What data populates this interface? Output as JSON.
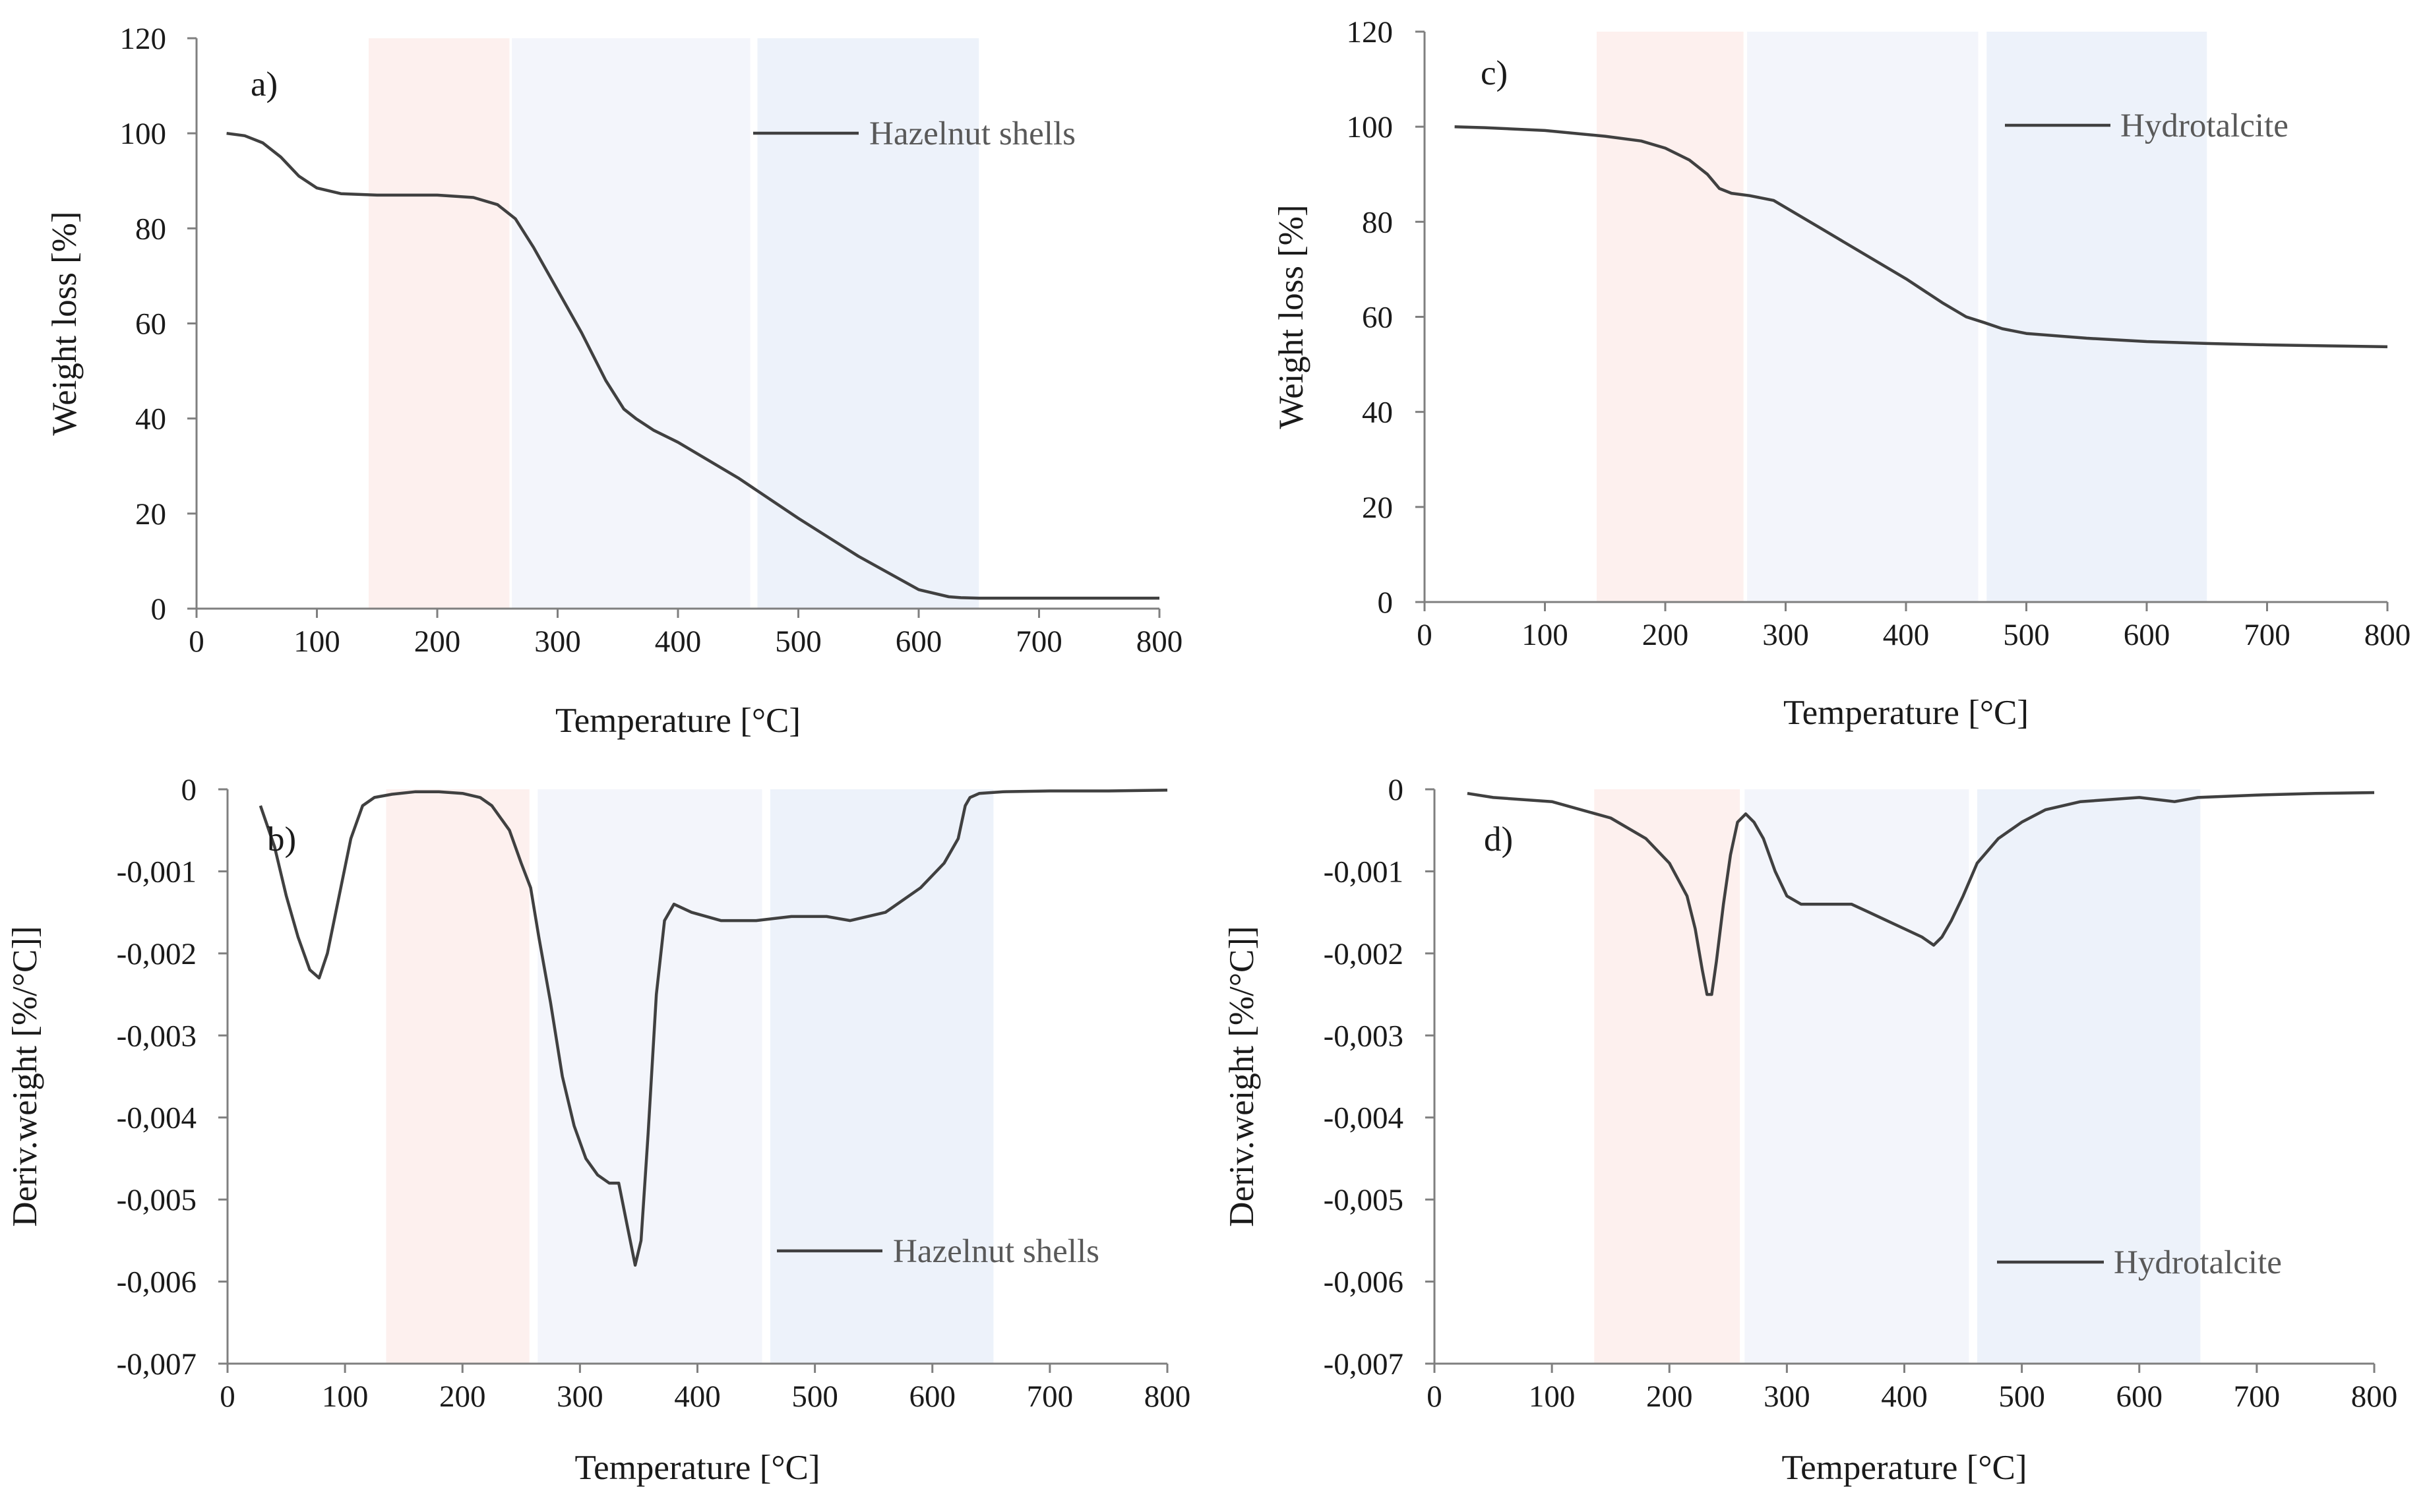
{
  "chart_data": [
    {
      "panel": "a)",
      "type": "line",
      "xlabel": "Temperature [°C]",
      "ylabel": "Weight loss [%]",
      "xlim": [
        0,
        800
      ],
      "ylim": [
        0,
        120
      ],
      "xticks": [
        "0",
        "100",
        "200",
        "300",
        "400",
        "500",
        "600",
        "700",
        "800"
      ],
      "yticks": [
        "0",
        "20",
        "40",
        "60",
        "80",
        "100",
        "120"
      ],
      "legend_position": "top-right",
      "bands": [
        {
          "x": [
            143,
            260
          ],
          "color": "#fdf0ee"
        },
        {
          "x": [
            262,
            460
          ],
          "color": "#f3f5fb"
        },
        {
          "x": [
            466,
            650
          ],
          "color": "#edf2fa"
        }
      ],
      "series": [
        {
          "name": "Hazelnut shells",
          "color": "#404040",
          "x": [
            25,
            40,
            55,
            70,
            85,
            100,
            120,
            150,
            200,
            230,
            250,
            265,
            280,
            300,
            320,
            340,
            355,
            365,
            380,
            400,
            450,
            500,
            550,
            600,
            625,
            635,
            650,
            700,
            750,
            800
          ],
          "y": [
            100,
            99.5,
            98,
            95,
            91,
            88.5,
            87.3,
            87,
            87,
            86.5,
            85,
            82,
            76,
            67,
            58,
            48,
            42,
            40,
            37.5,
            35,
            27.5,
            19,
            11,
            4,
            2.5,
            2.3,
            2.2,
            2.2,
            2.2,
            2.2
          ]
        }
      ]
    },
    {
      "panel": "b)",
      "type": "line",
      "xlabel": "Temperature [°C]",
      "ylabel": "Deriv.weight [%/°C]]",
      "xlim": [
        0,
        800
      ],
      "ylim": [
        -0.007,
        0
      ],
      "xticks": [
        "0",
        "100",
        "200",
        "300",
        "400",
        "500",
        "600",
        "700",
        "800"
      ],
      "yticks": [
        "0",
        "-0,001",
        "-0,002",
        "-0,003",
        "-0,004",
        "-0,005",
        "-0,006",
        "-0,007"
      ],
      "legend_position": "bottom-right",
      "bands": [
        {
          "x": [
            135,
            257
          ],
          "color": "#fdf0ee"
        },
        {
          "x": [
            264,
            455
          ],
          "color": "#f3f5fb"
        },
        {
          "x": [
            462,
            652
          ],
          "color": "#edf2fa"
        }
      ],
      "series": [
        {
          "name": "Hazelnut shells",
          "color": "#404040",
          "x": [
            28,
            40,
            50,
            60,
            70,
            78,
            85,
            95,
            105,
            115,
            125,
            140,
            160,
            180,
            200,
            215,
            225,
            240,
            250,
            258,
            265,
            275,
            285,
            295,
            305,
            315,
            325,
            333,
            340,
            347,
            352,
            358,
            365,
            372,
            380,
            395,
            420,
            450,
            480,
            510,
            530,
            560,
            590,
            610,
            622,
            628,
            632,
            640,
            660,
            700,
            750,
            800
          ],
          "y": [
            -0.0002,
            -0.0007,
            -0.0013,
            -0.0018,
            -0.0022,
            -0.0023,
            -0.002,
            -0.0013,
            -0.0006,
            -0.0002,
            -0.0001,
            -6e-05,
            -3e-05,
            -3e-05,
            -5e-05,
            -0.0001,
            -0.0002,
            -0.0005,
            -0.0009,
            -0.0012,
            -0.0018,
            -0.0026,
            -0.0035,
            -0.0041,
            -0.0045,
            -0.0047,
            -0.0048,
            -0.0048,
            -0.0053,
            -0.0058,
            -0.0055,
            -0.0042,
            -0.0025,
            -0.0016,
            -0.0014,
            -0.0015,
            -0.0016,
            -0.0016,
            -0.00155,
            -0.00155,
            -0.0016,
            -0.0015,
            -0.0012,
            -0.0009,
            -0.0006,
            -0.0002,
            -0.0001,
            -5e-05,
            -3e-05,
            -2e-05,
            -2e-05,
            -1e-05
          ]
        }
      ]
    },
    {
      "panel": "c)",
      "type": "line",
      "xlabel": "Temperature [°C]",
      "ylabel": "Weight loss [%]",
      "xlim": [
        0,
        800
      ],
      "ylim": [
        0,
        120
      ],
      "xticks": [
        "0",
        "100",
        "200",
        "300",
        "400",
        "500",
        "600",
        "700",
        "800"
      ],
      "yticks": [
        "0",
        "20",
        "40",
        "60",
        "80",
        "100",
        "120"
      ],
      "legend_position": "top-right",
      "bands": [
        {
          "x": [
            143,
            265
          ],
          "color": "#fdf0ee"
        },
        {
          "x": [
            268,
            460
          ],
          "color": "#f3f5fb"
        },
        {
          "x": [
            467,
            650
          ],
          "color": "#edf2fa"
        }
      ],
      "series": [
        {
          "name": "Hydrotalcite",
          "color": "#404040",
          "x": [
            25,
            50,
            100,
            150,
            180,
            200,
            220,
            235,
            245,
            255,
            270,
            290,
            300,
            330,
            360,
            400,
            430,
            450,
            465,
            480,
            500,
            550,
            600,
            650,
            700,
            750,
            800
          ],
          "y": [
            100,
            99.8,
            99.2,
            98,
            97,
            95.5,
            93,
            90,
            87,
            86,
            85.5,
            84.5,
            83,
            78.5,
            74,
            68,
            63,
            60,
            58.8,
            57.5,
            56.5,
            55.5,
            54.8,
            54.4,
            54.1,
            53.9,
            53.7
          ]
        }
      ]
    },
    {
      "panel": "d)",
      "type": "line",
      "xlabel": "Temperature [°C]",
      "ylabel": "Deriv.weight [%/°C]]",
      "xlim": [
        0,
        800
      ],
      "ylim": [
        -0.007,
        0
      ],
      "xticks": [
        "0",
        "100",
        "200",
        "300",
        "400",
        "500",
        "600",
        "700",
        "800"
      ],
      "yticks": [
        "0",
        "-0,001",
        "-0,002",
        "-0,003",
        "-0,004",
        "-0,005",
        "-0,006",
        "-0,007"
      ],
      "legend_position": "bottom-right",
      "bands": [
        {
          "x": [
            136,
            260
          ],
          "color": "#fdf0ee"
        },
        {
          "x": [
            264,
            455
          ],
          "color": "#f3f5fb"
        },
        {
          "x": [
            462,
            652
          ],
          "color": "#edf2fa"
        }
      ],
      "series": [
        {
          "name": "Hydrotalcite",
          "color": "#404040",
          "x": [
            28,
            50,
            100,
            150,
            180,
            200,
            215,
            222,
            228,
            232,
            236,
            240,
            246,
            252,
            258,
            265,
            272,
            280,
            290,
            300,
            312,
            325,
            340,
            355,
            370,
            385,
            400,
            415,
            425,
            432,
            440,
            450,
            462,
            480,
            500,
            520,
            550,
            600,
            630,
            650,
            700,
            750,
            800
          ],
          "y": [
            -5e-05,
            -0.0001,
            -0.00015,
            -0.00035,
            -0.0006,
            -0.0009,
            -0.0013,
            -0.0017,
            -0.0022,
            -0.0025,
            -0.0025,
            -0.0021,
            -0.0014,
            -0.0008,
            -0.0004,
            -0.0003,
            -0.0004,
            -0.0006,
            -0.001,
            -0.0013,
            -0.0014,
            -0.0014,
            -0.0014,
            -0.0014,
            -0.0015,
            -0.0016,
            -0.0017,
            -0.0018,
            -0.0019,
            -0.0018,
            -0.0016,
            -0.0013,
            -0.0009,
            -0.0006,
            -0.0004,
            -0.00025,
            -0.00015,
            -0.0001,
            -0.00015,
            -0.0001,
            -7e-05,
            -5e-05,
            -4e-05
          ]
        }
      ]
    }
  ]
}
